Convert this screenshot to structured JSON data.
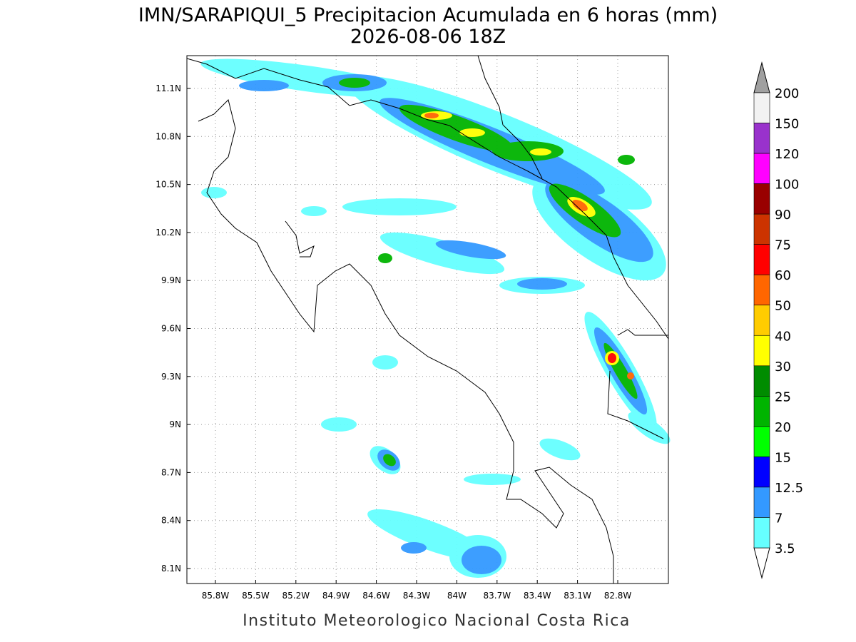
{
  "header": {
    "title": "IMN/SARAPIQUI_5 Precipitacion Acumulada en 6 horas (mm)",
    "subtitle": "2026-08-06 18Z"
  },
  "map": {
    "lat_labels": [
      "11.1N",
      "10.8N",
      "10.5N",
      "10.2N",
      "9.9N",
      "9.6N",
      "9.3N",
      "9N",
      "8.7N",
      "8.4N",
      "8.1N"
    ],
    "lon_labels": [
      "85.8W",
      "85.5W",
      "85.2W",
      "84.9W",
      "84.6W",
      "84.3W",
      "84W",
      "83.7W",
      "83.4W",
      "83.1W",
      "82.8W"
    ],
    "grid": true
  },
  "legend": {
    "levels": [
      "200",
      "150",
      "120",
      "100",
      "90",
      "75",
      "60",
      "50",
      "40",
      "30",
      "25",
      "20",
      "15",
      "12.5",
      "7",
      "3.5"
    ],
    "colors": [
      "#f2f2f2",
      "#9932cc",
      "#ff00ff",
      "#990000",
      "#cc3300",
      "#ff0000",
      "#ff6600",
      "#ffcc00",
      "#ffff00",
      "#008c00",
      "#00b400",
      "#00ff00",
      "#0000ff",
      "#3399ff",
      "#66ffff"
    ]
  },
  "footer": {
    "text": "Instituto Meteorologico Nacional Costa Rica"
  }
}
